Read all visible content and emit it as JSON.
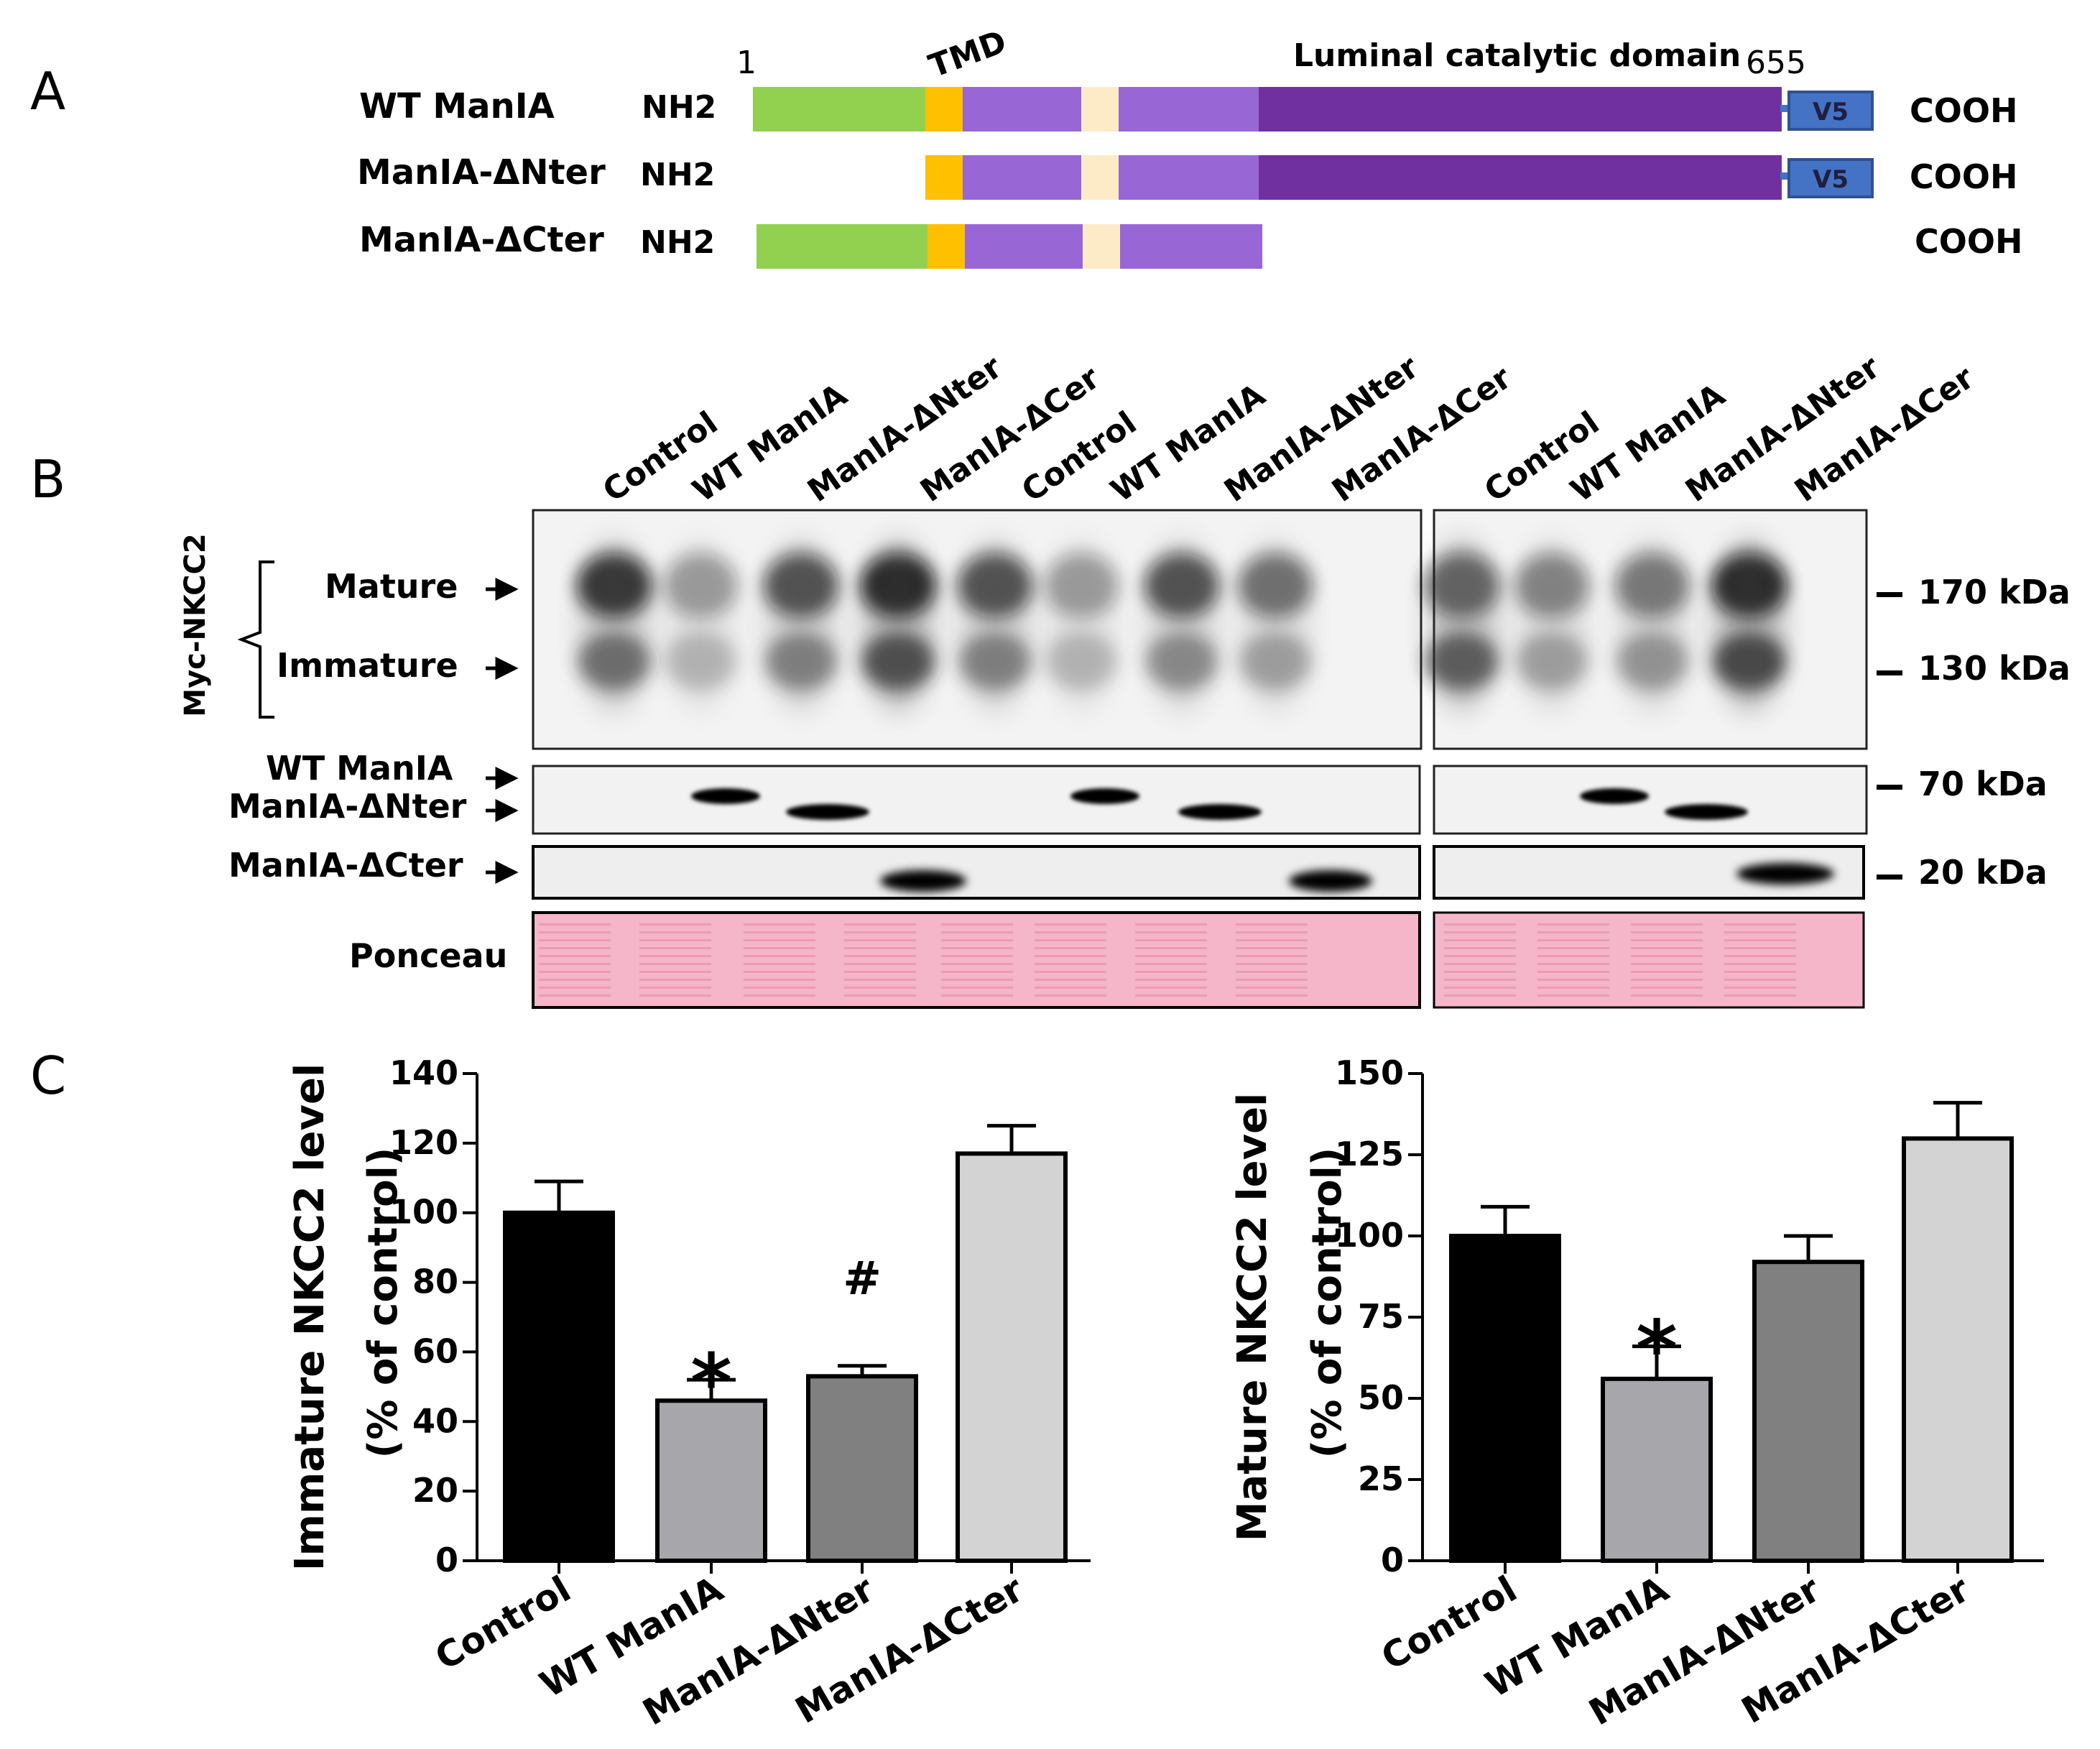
{
  "panel_labels": {
    "a": "A",
    "b": "B",
    "c": "C"
  },
  "panel_a": {
    "start_residue": "1",
    "end_residue": "655",
    "tmd_label": "TMD",
    "catalytic_label": "Luminal catalytic domain",
    "tag_label": "V5",
    "n_term": "NH2",
    "c_term": "COOH",
    "constructs": [
      {
        "name": "WT ManIA",
        "cytosolic": true,
        "catalytic": true,
        "tag": true
      },
      {
        "name": "ManIA-ΔNter",
        "cytosolic": false,
        "catalytic": true,
        "tag": true
      },
      {
        "name": "ManIA-ΔCter",
        "cytosolic": true,
        "catalytic": false,
        "tag": false
      }
    ],
    "colors": {
      "cytosolic": "#92d050",
      "tmd": "#ffc000",
      "stem": "#9966d6",
      "linker": "#fdebc8",
      "catalytic": "#7030a0",
      "tag": "#4472c4"
    }
  },
  "panel_b": {
    "lane_labels_left": [
      "Control",
      "WT ManIA",
      "ManIA-ΔNter",
      "ManIA-ΔCer",
      "Control",
      "WT ManIA",
      "ManIA-ΔNter",
      "ManIA-ΔCer"
    ],
    "lane_labels_right": [
      "Control",
      "WT ManIA",
      "ManIA-ΔNter",
      "ManIA-ΔCer"
    ],
    "blot_side_label": "Myc-NKCC2",
    "mature_label": "Mature",
    "immature_label": "Immature",
    "wt_label": "WT ManIA",
    "dnter_label": "ManIA-ΔNter",
    "dcter_label": "ManIA-ΔCter",
    "ponceau_label": "Ponceau",
    "markers": [
      "170 kDa",
      "130 kDa",
      "70 kDa",
      "20 kDa"
    ],
    "ponceau_color": "#f4b6c8"
  },
  "chart_data": [
    {
      "type": "bar",
      "ylabel": "Immature NKCC2 level",
      "ylabel2": "(% of control)",
      "categories": [
        "Control",
        "WT ManIA",
        "ManIA-ΔNter",
        "ManIA-ΔCter"
      ],
      "values": [
        100,
        46,
        53,
        117
      ],
      "errors": [
        9,
        6,
        3,
        8
      ],
      "annotations": [
        "",
        "*",
        "#",
        ""
      ],
      "fill_colors": [
        "#000000",
        "#a6a6ab",
        "#808080",
        "#d3d3d3"
      ],
      "ylim": [
        0,
        140
      ],
      "yticks": [
        0,
        20,
        40,
        60,
        80,
        100,
        120,
        140
      ],
      "ytick_labels": [
        "0",
        "20",
        "40",
        "60",
        "80",
        "100",
        "120",
        "140"
      ]
    },
    {
      "type": "bar",
      "ylabel": "Mature NKCC2 level",
      "ylabel2": "(% of control)",
      "categories": [
        "Control",
        "WT ManIA",
        "ManIA-ΔNter",
        "ManIA-ΔCter"
      ],
      "values": [
        100,
        56,
        92,
        130
      ],
      "errors": [
        9,
        10,
        8,
        11
      ],
      "annotations": [
        "",
        "*",
        "",
        ""
      ],
      "fill_colors": [
        "#000000",
        "#a6a6ab",
        "#808080",
        "#d3d3d3"
      ],
      "ylim": [
        0,
        150
      ],
      "yticks": [
        0,
        25,
        50,
        75,
        100,
        125,
        150
      ],
      "ytick_labels": [
        "0",
        "25",
        "50",
        "75",
        "100",
        "125",
        "150"
      ]
    }
  ]
}
